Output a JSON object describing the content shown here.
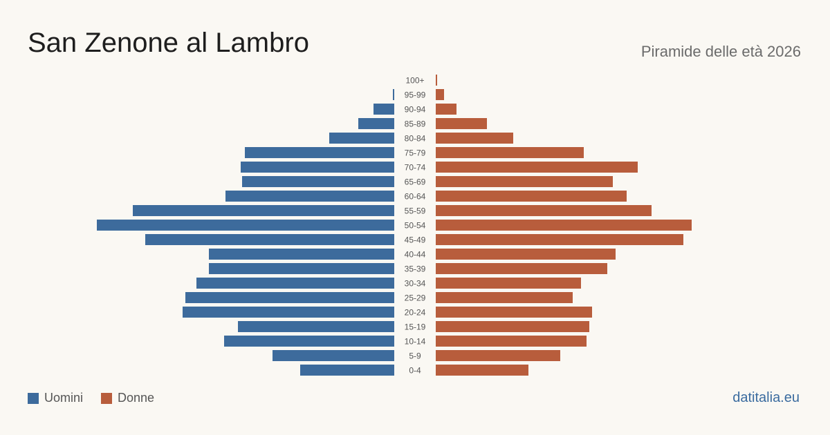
{
  "header": {
    "title": "San Zenone al Lambro",
    "subtitle": "Piramide delle età 2026"
  },
  "colors": {
    "men": "#3d6b9c",
    "women": "#b85d3c",
    "label": "#555555"
  },
  "chart_data": {
    "type": "bar",
    "orientation": "horizontal-pyramid",
    "categories": [
      "100+",
      "95-99",
      "90-94",
      "85-89",
      "80-84",
      "75-79",
      "70-74",
      "65-69",
      "60-64",
      "55-59",
      "50-54",
      "45-49",
      "40-44",
      "35-39",
      "30-34",
      "25-29",
      "20-24",
      "15-19",
      "10-14",
      "5-9",
      "0-4"
    ],
    "series": [
      {
        "name": "Uomini",
        "values": [
          0,
          1,
          15,
          26,
          47,
          108,
          111,
          110,
          122,
          189,
          215,
          180,
          134,
          134,
          143,
          151,
          153,
          113,
          123,
          88,
          68
        ]
      },
      {
        "name": "Donne",
        "values": [
          1,
          6,
          15,
          37,
          56,
          107,
          146,
          128,
          138,
          156,
          185,
          179,
          130,
          124,
          105,
          99,
          113,
          111,
          109,
          90,
          67
        ]
      }
    ],
    "legend_position": "bottom-left",
    "grid": false
  },
  "legend": {
    "men_label": "Uomini",
    "women_label": "Donne"
  },
  "footer": {
    "brand": "datitalia.eu"
  }
}
